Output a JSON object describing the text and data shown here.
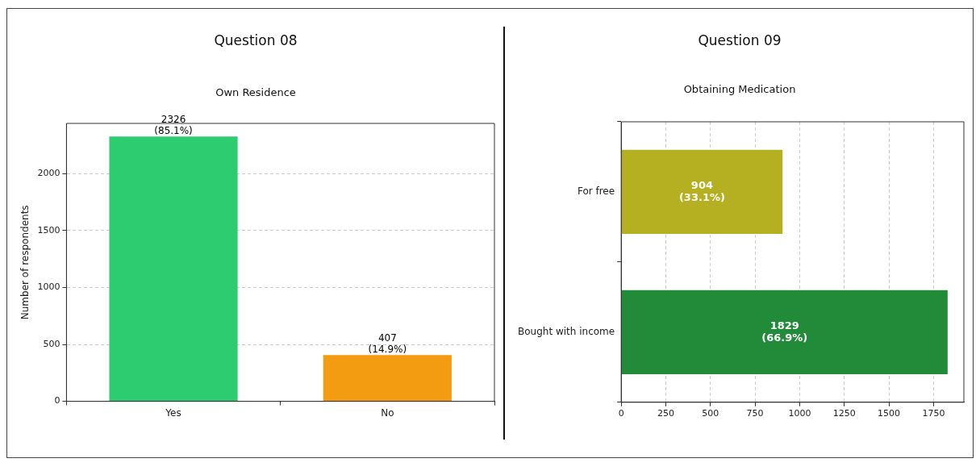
{
  "chart_data": [
    {
      "type": "bar",
      "title": "Question 08",
      "subtitle": "Own Residence",
      "ylabel": "Number of respondents",
      "categories": [
        "Yes",
        "No"
      ],
      "values": [
        2326,
        407
      ],
      "colors": [
        "#2ecc71",
        "#f39c12"
      ],
      "value_labels": [
        "2326\n(85.1%)",
        "407\n(14.9%)"
      ],
      "ylim": [
        0,
        2442
      ],
      "yticks": [
        0,
        500,
        1000,
        1500,
        2000
      ],
      "grid": "y"
    },
    {
      "type": "bar",
      "orientation": "horizontal",
      "title": "Question 09",
      "subtitle": "Obtaining Medication",
      "categories": [
        "For free",
        "Bought with income"
      ],
      "values": [
        904,
        1829
      ],
      "colors": [
        "#b5b021",
        "#228b3a"
      ],
      "value_labels": [
        "904\n(33.1%)",
        "1829\n(66.9%)"
      ],
      "xlim": [
        0,
        1920
      ],
      "xticks": [
        0,
        250,
        500,
        750,
        1000,
        1250,
        1500,
        1750
      ],
      "grid": "x"
    }
  ]
}
